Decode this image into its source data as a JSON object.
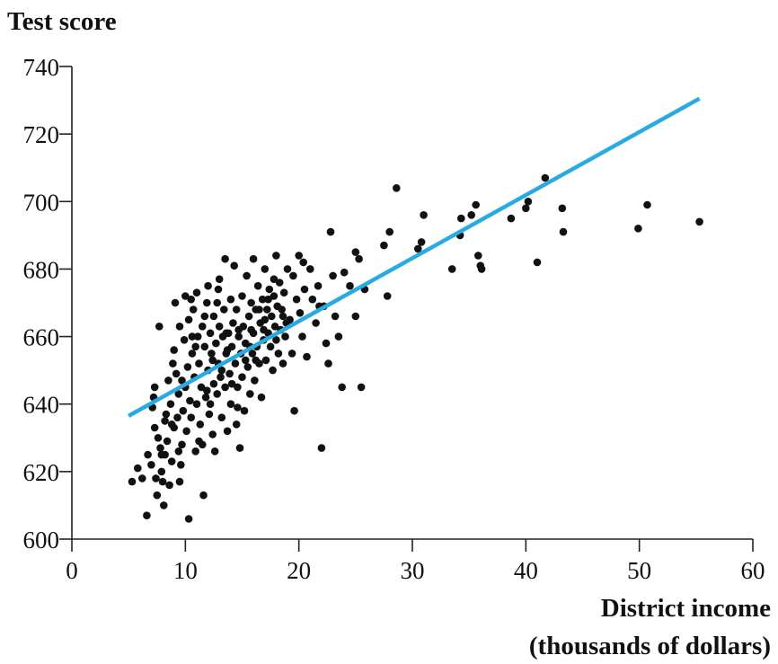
{
  "chart_data": {
    "type": "scatter",
    "ylabel": "Test score",
    "xlabel_line1": "District income",
    "xlabel_line2": "(thousands of dollars)",
    "xlim": [
      0,
      60
    ],
    "ylim": [
      600,
      740
    ],
    "xticks": [
      0,
      10,
      20,
      30,
      40,
      50,
      60
    ],
    "yticks": [
      600,
      620,
      640,
      660,
      680,
      700,
      720,
      740
    ],
    "grid": false,
    "colors": {
      "points": "#111111",
      "regression_line": "#29abe2"
    },
    "regression_line": {
      "x": [
        5,
        55.3
      ],
      "y": [
        636.5,
        730.5
      ]
    },
    "points": [
      [
        5.3,
        617
      ],
      [
        5.8,
        621
      ],
      [
        6.2,
        618
      ],
      [
        6.6,
        607
      ],
      [
        6.7,
        625
      ],
      [
        7.0,
        622
      ],
      [
        7.1,
        639
      ],
      [
        7.2,
        642
      ],
      [
        7.3,
        645
      ],
      [
        7.3,
        633
      ],
      [
        7.4,
        618
      ],
      [
        7.5,
        613
      ],
      [
        7.6,
        630
      ],
      [
        7.7,
        663
      ],
      [
        7.8,
        627
      ],
      [
        7.9,
        620
      ],
      [
        8.0,
        617
      ],
      [
        8.1,
        610
      ],
      [
        8.2,
        625
      ],
      [
        8.3,
        637
      ],
      [
        8.4,
        629
      ],
      [
        8.5,
        647
      ],
      [
        8.6,
        616
      ],
      [
        8.7,
        640
      ],
      [
        8.8,
        623
      ],
      [
        8.9,
        652
      ],
      [
        9.0,
        656
      ],
      [
        9.0,
        633
      ],
      [
        9.1,
        670
      ],
      [
        9.2,
        649
      ],
      [
        9.3,
        636
      ],
      [
        9.4,
        643
      ],
      [
        9.5,
        617
      ],
      [
        9.5,
        663
      ],
      [
        9.6,
        622
      ],
      [
        9.7,
        628
      ],
      [
        9.8,
        638
      ],
      [
        9.9,
        659
      ],
      [
        10.0,
        672
      ],
      [
        10.0,
        645
      ],
      [
        10.1,
        632
      ],
      [
        10.2,
        651
      ],
      [
        10.3,
        606
      ],
      [
        10.3,
        665
      ],
      [
        10.4,
        641
      ],
      [
        10.5,
        636
      ],
      [
        10.6,
        655
      ],
      [
        10.7,
        668
      ],
      [
        10.8,
        648
      ],
      [
        10.9,
        626
      ],
      [
        11.0,
        673
      ],
      [
        11.0,
        640
      ],
      [
        11.1,
        660
      ],
      [
        11.2,
        652
      ],
      [
        11.3,
        634
      ],
      [
        11.4,
        645
      ],
      [
        11.5,
        663
      ],
      [
        11.5,
        628
      ],
      [
        11.6,
        613
      ],
      [
        11.7,
        657
      ],
      [
        11.8,
        642
      ],
      [
        11.9,
        670
      ],
      [
        12.0,
        675
      ],
      [
        12.0,
        650
      ],
      [
        12.1,
        637
      ],
      [
        12.2,
        661
      ],
      [
        12.3,
        655
      ],
      [
        12.4,
        631
      ],
      [
        12.5,
        646
      ],
      [
        12.5,
        666
      ],
      [
        12.6,
        626
      ],
      [
        12.7,
        658
      ],
      [
        12.8,
        643
      ],
      [
        12.9,
        652
      ],
      [
        13.0,
        663
      ],
      [
        13.0,
        677
      ],
      [
        13.1,
        648
      ],
      [
        13.2,
        636
      ],
      [
        13.3,
        660
      ],
      [
        13.4,
        668
      ],
      [
        13.5,
        683
      ],
      [
        13.5,
        645
      ],
      [
        13.6,
        655
      ],
      [
        13.7,
        632
      ],
      [
        13.8,
        661
      ],
      [
        13.9,
        649
      ],
      [
        14.0,
        671
      ],
      [
        14.0,
        640
      ],
      [
        14.1,
        657
      ],
      [
        14.2,
        664
      ],
      [
        14.3,
        681
      ],
      [
        14.4,
        652
      ],
      [
        14.5,
        634
      ],
      [
        14.5,
        668
      ],
      [
        14.6,
        645
      ],
      [
        14.7,
        660
      ],
      [
        14.8,
        627
      ],
      [
        14.9,
        655
      ],
      [
        15.0,
        672
      ],
      [
        15.0,
        648
      ],
      [
        15.1,
        663
      ],
      [
        15.2,
        638
      ],
      [
        15.3,
        658
      ],
      [
        15.4,
        678
      ],
      [
        15.5,
        651
      ],
      [
        15.6,
        666
      ],
      [
        15.7,
        643
      ],
      [
        15.8,
        670
      ],
      [
        15.9,
        655
      ],
      [
        16.0,
        661
      ],
      [
        16.0,
        683
      ],
      [
        16.1,
        647
      ],
      [
        16.2,
        668
      ],
      [
        16.3,
        657
      ],
      [
        16.4,
        675
      ],
      [
        16.5,
        652
      ],
      [
        16.6,
        664
      ],
      [
        16.7,
        642
      ],
      [
        16.8,
        671
      ],
      [
        16.9,
        659
      ],
      [
        17.0,
        665
      ],
      [
        17.0,
        680
      ],
      [
        17.1,
        653
      ],
      [
        17.2,
        668
      ],
      [
        17.3,
        661
      ],
      [
        17.4,
        674
      ],
      [
        17.5,
        657
      ],
      [
        17.6,
        666
      ],
      [
        17.7,
        650
      ],
      [
        17.8,
        672
      ],
      [
        17.9,
        663
      ],
      [
        18.0,
        684
      ],
      [
        18.0,
        659
      ],
      [
        18.1,
        669
      ],
      [
        18.2,
        655
      ],
      [
        18.3,
        676
      ],
      [
        18.4,
        662
      ],
      [
        18.5,
        668
      ],
      [
        18.6,
        652
      ],
      [
        18.7,
        673
      ],
      [
        18.8,
        660
      ],
      [
        19.0,
        680
      ],
      [
        19.2,
        665
      ],
      [
        19.4,
        655
      ],
      [
        19.6,
        638
      ],
      [
        19.8,
        671
      ],
      [
        20.0,
        684
      ],
      [
        20.1,
        667
      ],
      [
        20.3,
        660
      ],
      [
        20.5,
        674
      ],
      [
        20.7,
        654
      ],
      [
        21.0,
        680
      ],
      [
        21.2,
        671
      ],
      [
        21.5,
        664
      ],
      [
        21.7,
        675
      ],
      [
        22.0,
        627
      ],
      [
        22.2,
        669
      ],
      [
        22.4,
        658
      ],
      [
        22.6,
        652
      ],
      [
        22.8,
        691
      ],
      [
        23.0,
        678
      ],
      [
        23.2,
        666
      ],
      [
        23.5,
        660
      ],
      [
        23.8,
        645
      ],
      [
        24.0,
        679
      ],
      [
        24.5,
        675
      ],
      [
        25.0,
        685
      ],
      [
        25.0,
        666
      ],
      [
        25.3,
        683
      ],
      [
        25.5,
        645
      ],
      [
        25.8,
        674
      ],
      [
        27.5,
        687
      ],
      [
        27.8,
        672
      ],
      [
        28.0,
        691
      ],
      [
        28.6,
        704
      ],
      [
        30.5,
        686
      ],
      [
        30.8,
        688
      ],
      [
        31.0,
        696
      ],
      [
        33.5,
        680
      ],
      [
        34.2,
        690
      ],
      [
        34.3,
        695
      ],
      [
        35.2,
        696
      ],
      [
        35.6,
        699
      ],
      [
        35.8,
        684
      ],
      [
        36.0,
        681
      ],
      [
        36.1,
        680
      ],
      [
        38.7,
        695
      ],
      [
        40.0,
        698
      ],
      [
        40.2,
        700
      ],
      [
        41.0,
        682
      ],
      [
        41.7,
        707
      ],
      [
        43.2,
        698
      ],
      [
        43.3,
        691
      ],
      [
        49.9,
        692
      ],
      [
        50.7,
        699
      ],
      [
        55.3,
        694
      ],
      [
        13.2,
        650
      ],
      [
        12.8,
        670
      ],
      [
        14.6,
        639
      ],
      [
        11.9,
        644
      ],
      [
        15.8,
        662
      ],
      [
        16.5,
        668
      ],
      [
        9.7,
        647
      ],
      [
        10.6,
        660
      ],
      [
        12.2,
        640
      ],
      [
        13.7,
        656
      ],
      [
        17.3,
        671
      ],
      [
        18.6,
        666
      ],
      [
        11.2,
        629
      ],
      [
        10.9,
        657
      ],
      [
        14.1,
        646
      ],
      [
        15.3,
        653
      ],
      [
        16.9,
        662
      ],
      [
        12.4,
        653
      ],
      [
        13.6,
        661
      ],
      [
        19.5,
        678
      ],
      [
        20.4,
        682
      ],
      [
        21.8,
        669
      ],
      [
        8.8,
        634
      ],
      [
        9.4,
        626
      ],
      [
        8.2,
        635
      ],
      [
        7.9,
        625
      ],
      [
        10.5,
        671
      ],
      [
        11.7,
        666
      ],
      [
        12.9,
        674
      ],
      [
        14.7,
        662
      ],
      [
        15.7,
        657
      ],
      [
        17.8,
        677
      ],
      [
        18.9,
        664
      ],
      [
        16.2,
        653
      ]
    ]
  }
}
